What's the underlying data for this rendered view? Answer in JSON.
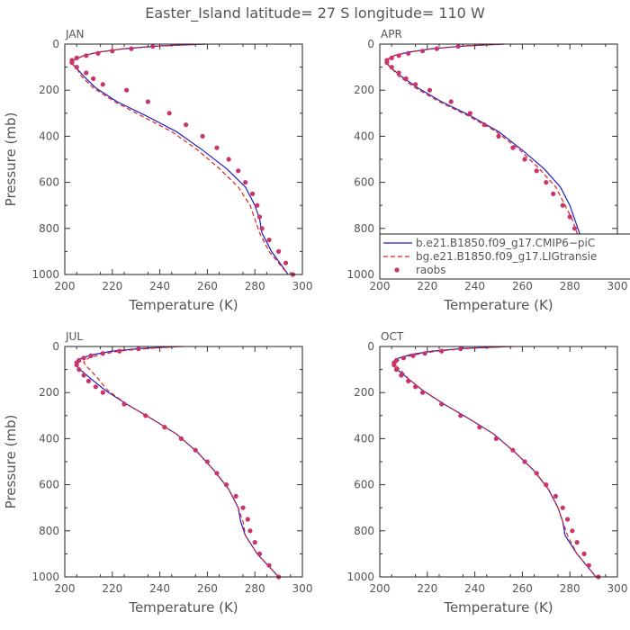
{
  "title": "Easter_Island  latitude= 27 S longitude= 110 W",
  "legend": {
    "entries": [
      {
        "label": "b.e21.B1850.f09_g17.CMIP6−piC",
        "color": "#1f1fbf",
        "style": "solid"
      },
      {
        "label": "bg.e21.B1850.f09_g17.LIGtransie",
        "color": "#e0201a",
        "style": "dashed"
      },
      {
        "label": "raobs",
        "color": "#c8356c",
        "style": "dot"
      }
    ]
  },
  "chart_data": [
    {
      "type": "line",
      "panel": "JAN",
      "xlabel": "Temperature (K)",
      "ylabel": "Pressure (mb)",
      "xlim": [
        200,
        300
      ],
      "ylim": [
        1000,
        0
      ],
      "xticks": [
        200,
        220,
        240,
        260,
        280,
        300
      ],
      "yticks": [
        0,
        200,
        400,
        600,
        800,
        1000
      ],
      "series": [
        {
          "name": "b.e21.B1850.f09_g17.CMIP6−piC",
          "x": [
            259,
            240,
            225,
            214,
            208,
            204,
            203,
            205,
            208,
            213,
            222,
            234,
            247,
            258,
            268,
            276,
            280,
            282,
            283,
            287,
            294
          ],
          "y": [
            0,
            8,
            20,
            35,
            50,
            68,
            85,
            105,
            140,
            190,
            250,
            310,
            380,
            460,
            540,
            620,
            700,
            760,
            820,
            900,
            1000
          ]
        },
        {
          "name": "bg.e21.B1850.f09_g17.LIGtransie",
          "x": [
            259,
            240,
            225,
            214,
            208,
            204,
            203,
            205,
            207,
            212,
            221,
            232,
            245,
            256,
            265,
            273,
            278,
            280,
            282,
            286,
            294
          ],
          "y": [
            0,
            8,
            20,
            35,
            50,
            68,
            85,
            105,
            140,
            190,
            250,
            310,
            380,
            460,
            540,
            620,
            700,
            760,
            820,
            900,
            1000
          ]
        },
        {
          "name": "raobs",
          "x": [
            237,
            228,
            220,
            214,
            209,
            205,
            203,
            203,
            205,
            209,
            212,
            216,
            226,
            235,
            244,
            251,
            258,
            264,
            269,
            273,
            276,
            279,
            281,
            282,
            283,
            286,
            290,
            293,
            296
          ],
          "y": [
            10,
            20,
            30,
            40,
            50,
            60,
            70,
            80,
            100,
            125,
            150,
            175,
            200,
            250,
            300,
            350,
            400,
            450,
            500,
            550,
            600,
            650,
            700,
            750,
            800,
            850,
            900,
            950,
            1000
          ]
        }
      ]
    },
    {
      "type": "line",
      "panel": "APR",
      "xlabel": "Temperature (K)",
      "ylabel": "",
      "xlim": [
        200,
        300
      ],
      "ylim": [
        1000,
        0
      ],
      "xticks": [
        200,
        220,
        240,
        260,
        280,
        300
      ],
      "yticks": [
        0,
        200,
        400,
        600,
        800,
        1000
      ],
      "series": [
        {
          "name": "b.e21.B1850.f09_g17.CMIP6−piC",
          "x": [
            252,
            236,
            222,
            212,
            206,
            203,
            203,
            205,
            209,
            216,
            226,
            238,
            250,
            260,
            269,
            276,
            280,
            282,
            284,
            288,
            294
          ],
          "y": [
            0,
            8,
            20,
            35,
            50,
            68,
            85,
            105,
            140,
            190,
            250,
            310,
            380,
            460,
            540,
            620,
            700,
            760,
            820,
            900,
            1000
          ]
        },
        {
          "name": "bg.e21.B1850.f09_g17.LIGtransie",
          "x": [
            252,
            236,
            222,
            212,
            206,
            203,
            203,
            205,
            208,
            215,
            225,
            237,
            249,
            259,
            267,
            274,
            278,
            281,
            283,
            287,
            294
          ],
          "y": [
            0,
            8,
            20,
            35,
            50,
            68,
            85,
            105,
            140,
            190,
            250,
            310,
            380,
            460,
            540,
            620,
            700,
            760,
            820,
            900,
            1000
          ]
        },
        {
          "name": "raobs",
          "x": [
            233,
            224,
            218,
            212,
            208,
            205,
            203,
            203,
            205,
            208,
            211,
            215,
            221,
            230,
            238,
            244,
            250,
            256,
            261,
            266,
            270,
            273,
            277,
            280,
            282,
            284,
            287,
            290,
            294
          ],
          "y": [
            10,
            20,
            30,
            40,
            50,
            60,
            70,
            80,
            100,
            125,
            150,
            175,
            200,
            250,
            300,
            350,
            400,
            450,
            500,
            550,
            600,
            650,
            700,
            750,
            800,
            850,
            900,
            950,
            1000
          ]
        }
      ]
    },
    {
      "type": "line",
      "panel": "JUL",
      "xlabel": "Temperature (K)",
      "ylabel": "Pressure (mb)",
      "xlim": [
        200,
        300
      ],
      "ylim": [
        1000,
        0
      ],
      "xticks": [
        200,
        220,
        240,
        260,
        280,
        300
      ],
      "yticks": [
        0,
        200,
        400,
        600,
        800,
        1000
      ],
      "series": [
        {
          "name": "b.e21.B1850.f09_g17.CMIP6−piC",
          "x": [
            248,
            233,
            220,
            212,
            207,
            205,
            205,
            207,
            211,
            217,
            226,
            236,
            247,
            256,
            263,
            269,
            273,
            274,
            276,
            281,
            290
          ],
          "y": [
            0,
            8,
            20,
            35,
            50,
            68,
            85,
            105,
            140,
            190,
            250,
            310,
            380,
            460,
            540,
            620,
            700,
            760,
            820,
            900,
            1000
          ]
        },
        {
          "name": "bg.e21.B1850.f09_g17.LIGtransie",
          "x": [
            250,
            236,
            223,
            215,
            210,
            208,
            209,
            211,
            214,
            218,
            226,
            236,
            247,
            256,
            263,
            269,
            273,
            275,
            276,
            281,
            290
          ],
          "y": [
            0,
            8,
            20,
            35,
            50,
            68,
            85,
            105,
            140,
            190,
            250,
            310,
            380,
            460,
            540,
            620,
            700,
            760,
            820,
            900,
            1000
          ]
        },
        {
          "name": "raobs",
          "x": [
            231,
            223,
            216,
            211,
            208,
            206,
            205,
            205,
            206,
            208,
            210,
            213,
            216,
            225,
            234,
            242,
            249,
            255,
            260,
            264,
            268,
            272,
            275,
            277,
            278,
            280,
            282,
            286,
            290
          ],
          "y": [
            10,
            20,
            30,
            40,
            50,
            60,
            70,
            80,
            100,
            125,
            150,
            175,
            200,
            250,
            300,
            350,
            400,
            450,
            500,
            550,
            600,
            650,
            700,
            750,
            800,
            850,
            900,
            950,
            1000
          ]
        }
      ]
    },
    {
      "type": "line",
      "panel": "OCT",
      "xlabel": "Temperature (K)",
      "ylabel": "",
      "xlim": [
        200,
        300
      ],
      "ylim": [
        1000,
        0
      ],
      "xticks": [
        200,
        220,
        240,
        260,
        280,
        300
      ],
      "yticks": [
        0,
        200,
        400,
        600,
        800,
        1000
      ],
      "series": [
        {
          "name": "b.e21.B1850.f09_g17.CMIP6−piC",
          "x": [
            255,
            236,
            222,
            213,
            208,
            206,
            206,
            208,
            212,
            218,
            227,
            237,
            248,
            257,
            265,
            271,
            275,
            277,
            278,
            283,
            291
          ],
          "y": [
            0,
            8,
            20,
            35,
            50,
            68,
            85,
            105,
            140,
            190,
            250,
            310,
            380,
            460,
            540,
            620,
            700,
            760,
            820,
            900,
            1000
          ]
        },
        {
          "name": "bg.e21.B1850.f09_g17.LIGtransie",
          "x": [
            256,
            238,
            224,
            215,
            209,
            207,
            207,
            209,
            212,
            218,
            227,
            237,
            248,
            257,
            265,
            271,
            275,
            277,
            279,
            283,
            291
          ],
          "y": [
            0,
            8,
            20,
            35,
            50,
            68,
            85,
            105,
            140,
            190,
            250,
            310,
            380,
            460,
            540,
            620,
            700,
            760,
            820,
            900,
            1000
          ]
        },
        {
          "name": "raobs",
          "x": [
            234,
            226,
            219,
            214,
            210,
            207,
            206,
            206,
            207,
            209,
            212,
            215,
            218,
            226,
            234,
            242,
            249,
            256,
            261,
            266,
            270,
            274,
            277,
            279,
            281,
            283,
            286,
            288,
            292
          ],
          "y": [
            10,
            20,
            30,
            40,
            50,
            60,
            70,
            80,
            100,
            125,
            150,
            175,
            200,
            250,
            300,
            350,
            400,
            450,
            500,
            550,
            600,
            650,
            700,
            750,
            800,
            850,
            900,
            950,
            1000
          ]
        }
      ]
    }
  ]
}
